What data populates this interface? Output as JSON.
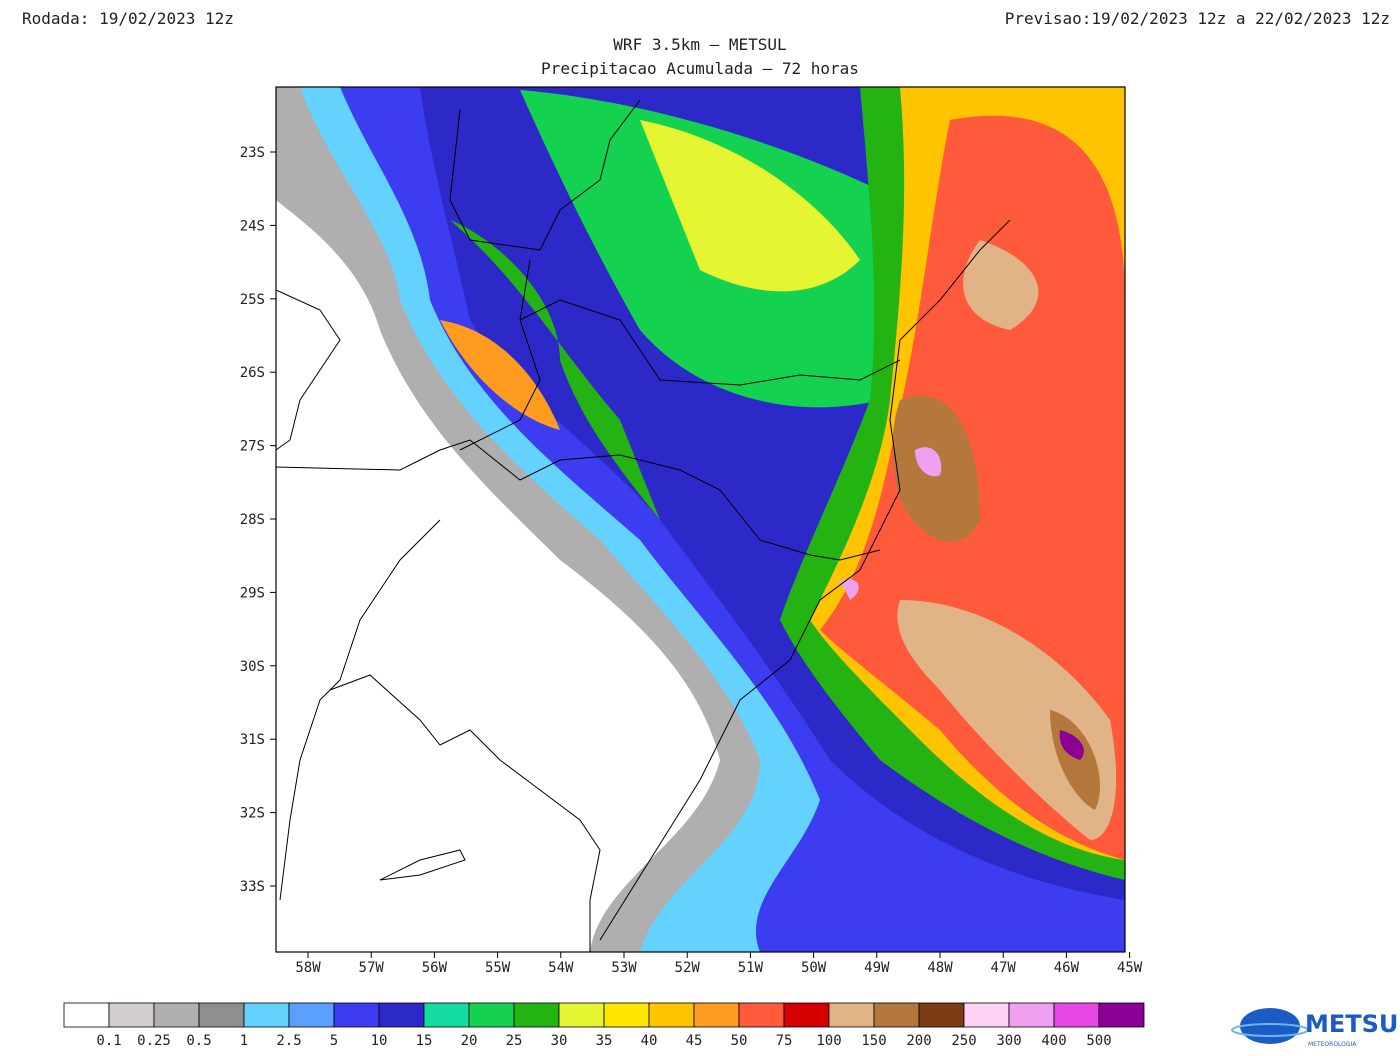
{
  "header": {
    "run": "Rodada: 19/02/2023 12z",
    "forecast": "Previsao:19/02/2023 12z a 22/02/2023 12z",
    "title": "WRF 3.5km – METSUL",
    "subtitle": "Precipitacao Acumulada – 72 horas"
  },
  "map": {
    "lat_labels": [
      "23S",
      "24S",
      "25S",
      "26S",
      "27S",
      "28S",
      "29S",
      "30S",
      "31S",
      "32S",
      "33S"
    ],
    "lon_labels": [
      "58W",
      "57W",
      "56W",
      "55W",
      "54W",
      "53W",
      "52W",
      "51W",
      "50W",
      "49W",
      "48W",
      "47W",
      "46W",
      "45W"
    ]
  },
  "legend": {
    "colors": [
      "#ffffff",
      "#d2cdcd",
      "#afafaf",
      "#8f8f8f",
      "#64d2ff",
      "#5aa0ff",
      "#3c3cf0",
      "#2d28c8",
      "#14dca0",
      "#14d250",
      "#23b414",
      "#e6f532",
      "#ffe600",
      "#ffc300",
      "#ff9b1e",
      "#ff5a3c",
      "#d70000",
      "#e1b487",
      "#b4783c",
      "#7d3c14",
      "#ffd2f5",
      "#f0a0f0",
      "#e646e6",
      "#8c0096"
    ],
    "labels": [
      "0.1",
      "0.25",
      "0.5",
      "1",
      "2.5",
      "5",
      "10",
      "15",
      "20",
      "25",
      "30",
      "35",
      "40",
      "45",
      "50",
      "75",
      "100",
      "150",
      "200",
      "250",
      "300",
      "400",
      "500"
    ]
  },
  "logo": {
    "name": "METSUL",
    "tagline": "METEOROLOGIA"
  }
}
